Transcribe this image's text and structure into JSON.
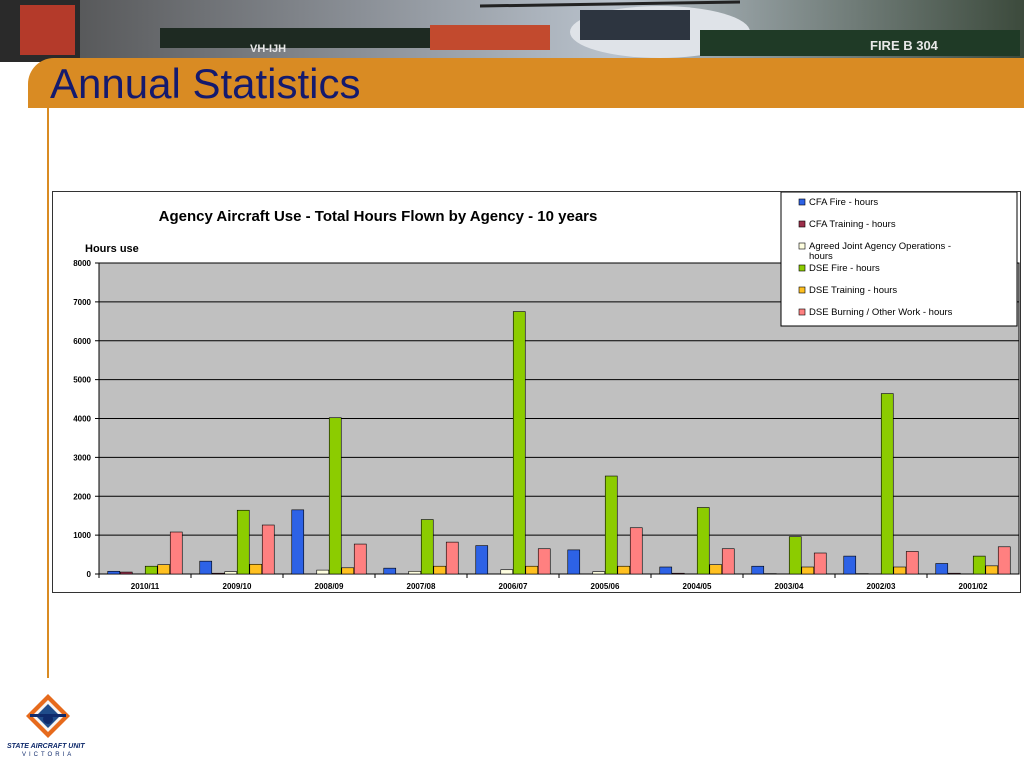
{
  "page": {
    "title": "Annual Statistics",
    "logo_line1": "STATE AIRCRAFT UNIT",
    "logo_line2": "VICTORIA",
    "banner_tail_text": "FIRE B 304",
    "banner_reg_text": "VH-IJH"
  },
  "colors": {
    "accent": "#d98b23",
    "title": "#141a6e",
    "plot_bg": "#c0c0c0"
  },
  "chart_data": {
    "type": "bar",
    "title": "Agency Aircraft Use - Total Hours Flown by Agency - 10 years",
    "ylabel": "Hours use",
    "xlabel": "",
    "ylim": [
      0,
      8000
    ],
    "yticks": [
      0,
      1000,
      2000,
      3000,
      4000,
      5000,
      6000,
      7000,
      8000
    ],
    "grid": true,
    "legend_position": "top-right",
    "categories": [
      "2010/11",
      "2009/10",
      "2008/09",
      "2007/08",
      "2006/07",
      "2005/06",
      "2004/05",
      "2003/04",
      "2002/03",
      "2001/02"
    ],
    "series": [
      {
        "name": "CFA Fire - hours",
        "color": "#2d62e6",
        "values": [
          70,
          330,
          1650,
          150,
          730,
          620,
          180,
          200,
          460,
          270
        ]
      },
      {
        "name": "CFA Training - hours",
        "color": "#9c2f4a",
        "values": [
          50,
          20,
          0,
          0,
          0,
          0,
          20,
          10,
          10,
          20
        ]
      },
      {
        "name": "Agreed Joint Agency Operations - hours",
        "color": "#ffffe0",
        "values": [
          0,
          60,
          100,
          70,
          110,
          60,
          0,
          0,
          0,
          0
        ]
      },
      {
        "name": "DSE Fire -  hours",
        "color": "#8ccc00",
        "values": [
          200,
          1640,
          4020,
          1400,
          6750,
          2520,
          1710,
          960,
          4640,
          460
        ]
      },
      {
        "name": "DSE Training -  hours",
        "color": "#ffc020",
        "values": [
          240,
          250,
          160,
          200,
          200,
          200,
          240,
          180,
          180,
          210
        ]
      },
      {
        "name": "DSE Burning / Other Work -  hours",
        "color": "#ff8080",
        "values": [
          1080,
          1260,
          770,
          820,
          650,
          1190,
          650,
          540,
          580,
          700
        ]
      }
    ]
  }
}
